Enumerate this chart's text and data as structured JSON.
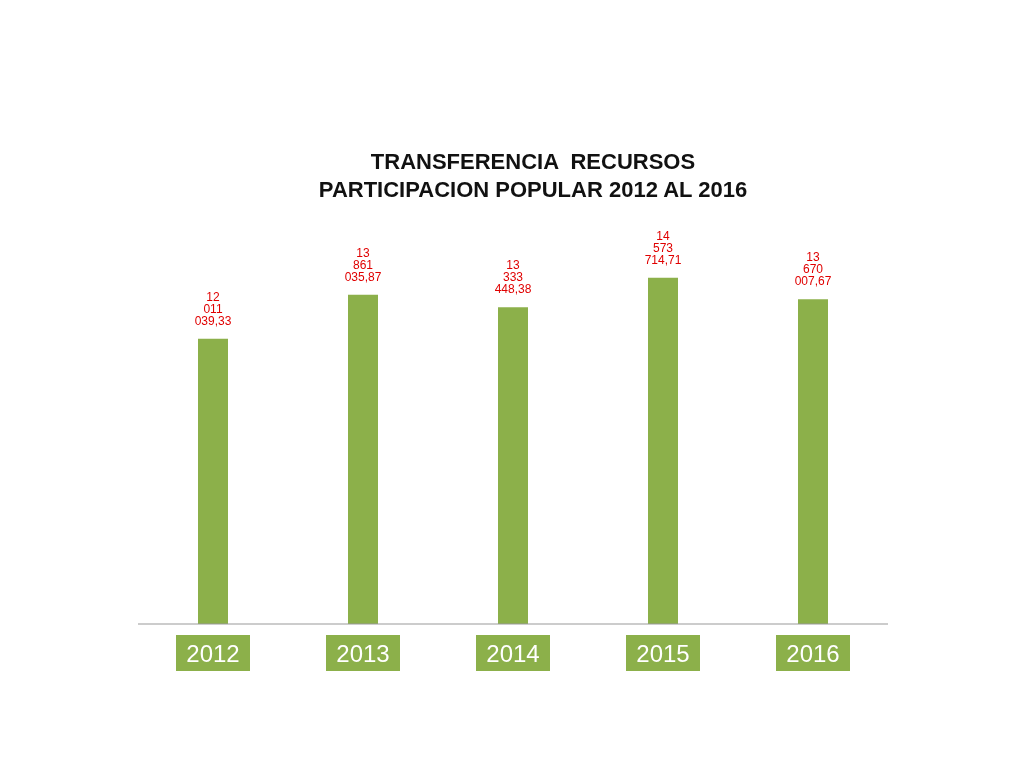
{
  "chart_data": {
    "type": "bar",
    "title": "TRANSFERENCIA  RECURSOS\nPARTICIPACION POPULAR 2012 AL 2016",
    "categories": [
      "2012",
      "2013",
      "2014",
      "2015",
      "2016"
    ],
    "values": [
      12011039.33,
      13861035.87,
      13333448.38,
      14573714.71,
      13670007.67
    ],
    "value_labels": [
      "12 011 039,33",
      "13 861 035,87",
      "13 333 448,38",
      "14 573 714,71",
      "13 670 007,67"
    ],
    "color": "#8cb04a"
  }
}
